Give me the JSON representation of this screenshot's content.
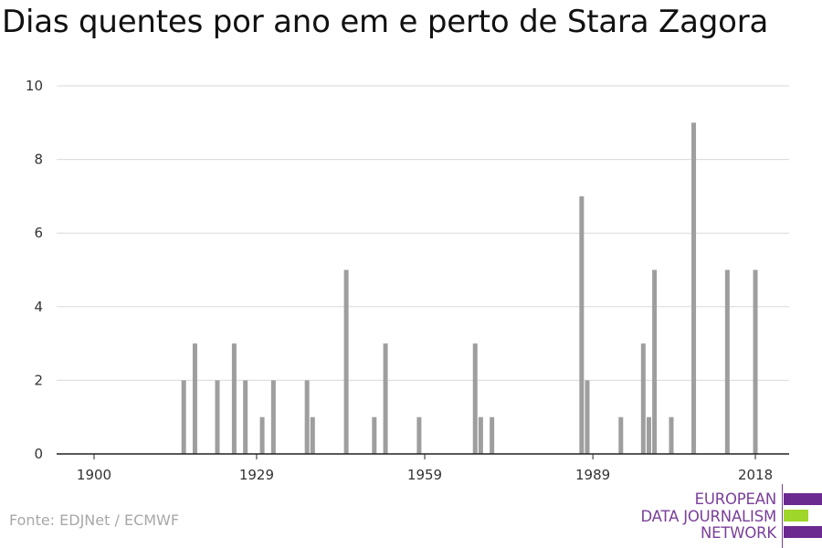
{
  "title": "Dias quentes por ano em e perto de Stara Zagora",
  "source": "Fonte: EDJNet / ECMWF",
  "logo": {
    "lines": [
      "EUROPEAN",
      "DATA JOURNALISM",
      "NETWORK"
    ],
    "colors": {
      "purple": "#6b2a8f",
      "green": "#9fd62a",
      "text": "#7a3f9a"
    }
  },
  "colors": {
    "bar": "#9e9e9e",
    "grid": "#d9d9d9",
    "axis": "#222222"
  },
  "chart_data": {
    "type": "bar",
    "title": "Dias quentes por ano em e perto de Stara Zagora",
    "xlabel": "",
    "ylabel": "",
    "x_ticks": [
      1900,
      1929,
      1959,
      1989,
      2018
    ],
    "y_ticks": [
      0,
      2,
      4,
      6,
      8,
      10
    ],
    "xlim": [
      1900,
      2018
    ],
    "ylim": [
      0,
      10
    ],
    "grid": true,
    "legend": "none",
    "series": [
      {
        "x": [
          1916,
          1918,
          1922,
          1925,
          1927,
          1930,
          1932,
          1938,
          1939,
          1945,
          1950,
          1952,
          1958,
          1968,
          1969,
          1971,
          1987,
          1988,
          1994,
          1998,
          1999,
          2000,
          2003,
          2007,
          2013,
          2018
        ],
        "values": [
          2,
          3,
          2,
          3,
          2,
          1,
          2,
          2,
          1,
          5,
          1,
          3,
          1,
          3,
          1,
          1,
          7,
          2,
          1,
          3,
          1,
          5,
          1,
          9,
          5,
          5
        ]
      }
    ]
  }
}
